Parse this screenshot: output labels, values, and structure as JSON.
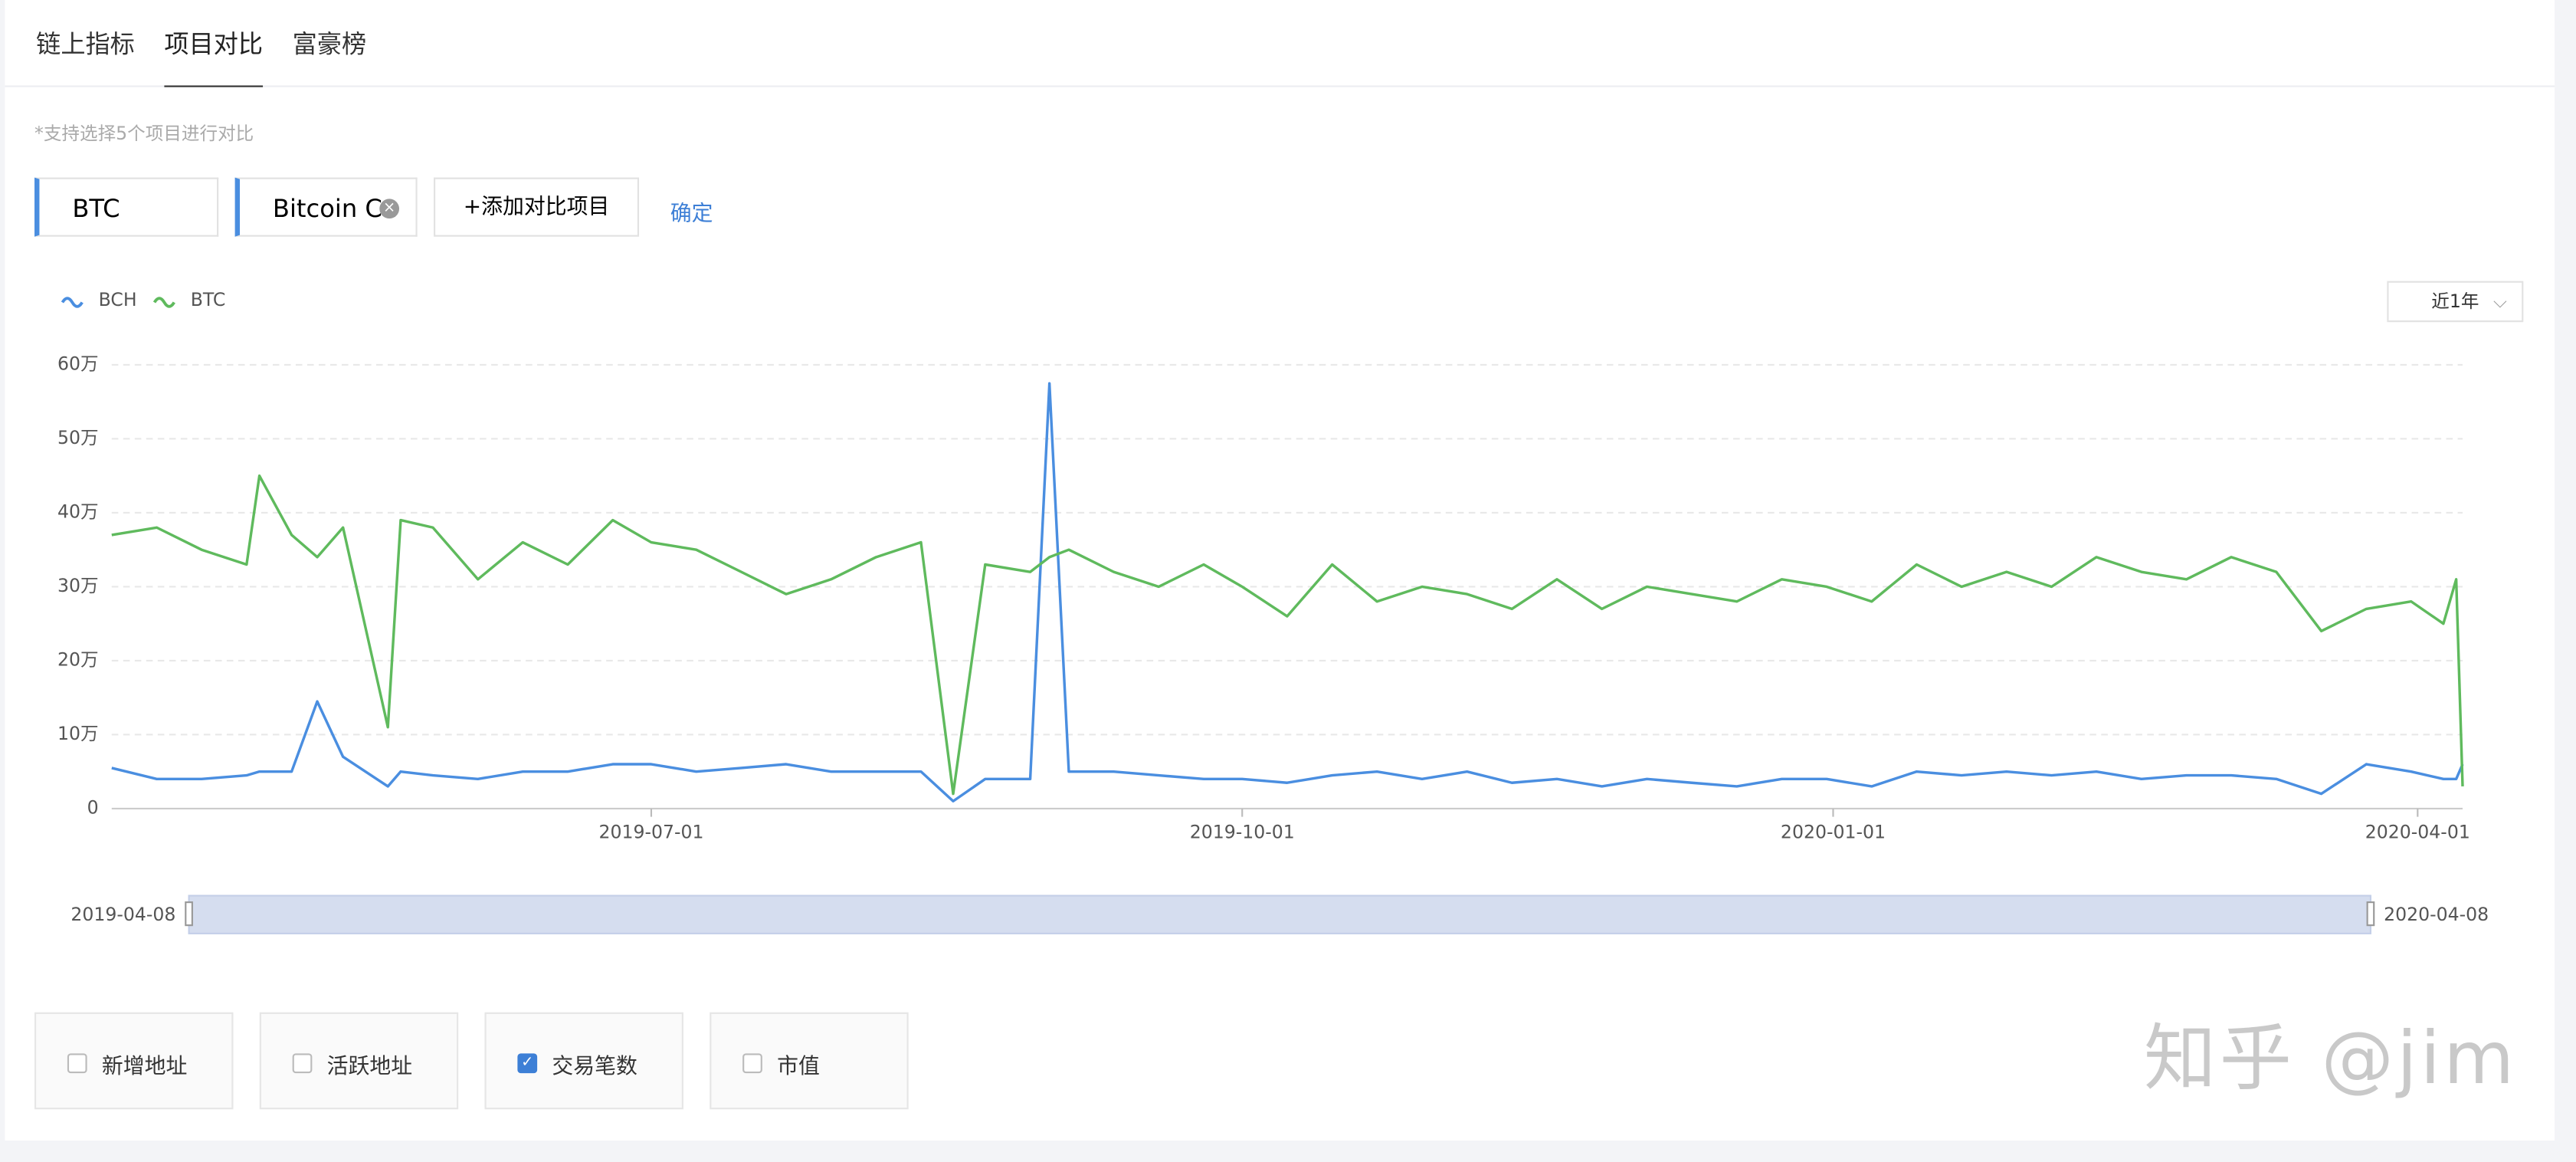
{
  "tabs": {
    "items": [
      "链上指标",
      "项目对比",
      "富豪榜"
    ],
    "active": 1
  },
  "hint": "*支持选择5个项目进行对比",
  "selected": [
    "BTC",
    "Bitcoin Ca"
  ],
  "add_button": "+添加对比项目",
  "confirm": "确定",
  "range_select": "近1年",
  "chart_data": {
    "type": "line",
    "x": [
      "2019-04-08",
      "2019-04-15",
      "2019-04-22",
      "2019-04-29",
      "2019-05-01",
      "2019-05-06",
      "2019-05-10",
      "2019-05-14",
      "2019-05-21",
      "2019-05-23",
      "2019-05-28",
      "2019-06-04",
      "2019-06-11",
      "2019-06-18",
      "2019-06-25",
      "2019-07-01",
      "2019-07-08",
      "2019-07-15",
      "2019-07-22",
      "2019-07-29",
      "2019-08-05",
      "2019-08-12",
      "2019-08-17",
      "2019-08-22",
      "2019-08-29",
      "2019-09-01",
      "2019-09-04",
      "2019-09-11",
      "2019-09-18",
      "2019-09-25",
      "2019-10-01",
      "2019-10-08",
      "2019-10-15",
      "2019-10-22",
      "2019-10-29",
      "2019-11-05",
      "2019-11-12",
      "2019-11-19",
      "2019-11-26",
      "2019-12-03",
      "2019-12-10",
      "2019-12-17",
      "2019-12-24",
      "2019-12-31",
      "2020-01-07",
      "2020-01-14",
      "2020-01-21",
      "2020-01-28",
      "2020-02-04",
      "2020-02-11",
      "2020-02-18",
      "2020-02-25",
      "2020-03-03",
      "2020-03-10",
      "2020-03-17",
      "2020-03-24",
      "2020-03-31",
      "2020-04-05",
      "2020-04-07",
      "2020-04-08"
    ],
    "series": [
      {
        "name": "BCH",
        "color": "#4a8ee0",
        "values": [
          5.5,
          4,
          4,
          4.5,
          5,
          5,
          14.5,
          7,
          3,
          5,
          4.5,
          4,
          5,
          5,
          6,
          6,
          5,
          5.5,
          6,
          5,
          5,
          5,
          1,
          4,
          4,
          57.5,
          5,
          5,
          4.5,
          4,
          4,
          3.5,
          4.5,
          5,
          4,
          5,
          3.5,
          4,
          3,
          4,
          3.5,
          3,
          4,
          4,
          3,
          5,
          4.5,
          5,
          4.5,
          5,
          4,
          4.5,
          4.5,
          4,
          2,
          6,
          5,
          4,
          4,
          6
        ]
      },
      {
        "name": "BTC",
        "color": "#5fba5d",
        "values": [
          37,
          38,
          35,
          33,
          45,
          37,
          34,
          38,
          11,
          39,
          38,
          31,
          36,
          33,
          39,
          36,
          35,
          32,
          29,
          31,
          34,
          36,
          2,
          33,
          32,
          34,
          35,
          32,
          30,
          33,
          30,
          26,
          33,
          28,
          30,
          29,
          27,
          31,
          27,
          30,
          29,
          28,
          31,
          30,
          28,
          33,
          30,
          32,
          30,
          34,
          32,
          31,
          34,
          32,
          24,
          27,
          28,
          25,
          31,
          3
        ]
      }
    ],
    "xlim": [
      "2019-04-08",
      "2020-04-08"
    ],
    "xticks": [
      "2019-07-01",
      "2019-10-01",
      "2020-01-01",
      "2020-04-01"
    ],
    "ylim": [
      0,
      60
    ],
    "yticks": [
      0,
      {
        "value": 10,
        "label": "10万"
      },
      {
        "value": 20,
        "label": "20万"
      },
      {
        "value": 30,
        "label": "30万"
      },
      {
        "value": 40,
        "label": "40万"
      },
      {
        "value": 50,
        "label": "50万"
      },
      {
        "value": 60,
        "label": "60万"
      }
    ],
    "grid": true
  },
  "zoom": {
    "start": "2019-04-08",
    "end": "2020-04-08"
  },
  "metrics": [
    {
      "label": "新增地址",
      "checked": false
    },
    {
      "label": "活跃地址",
      "checked": false
    },
    {
      "label": "交易笔数",
      "checked": true
    },
    {
      "label": "市值",
      "checked": false
    }
  ],
  "watermark": "知乎 @jim"
}
